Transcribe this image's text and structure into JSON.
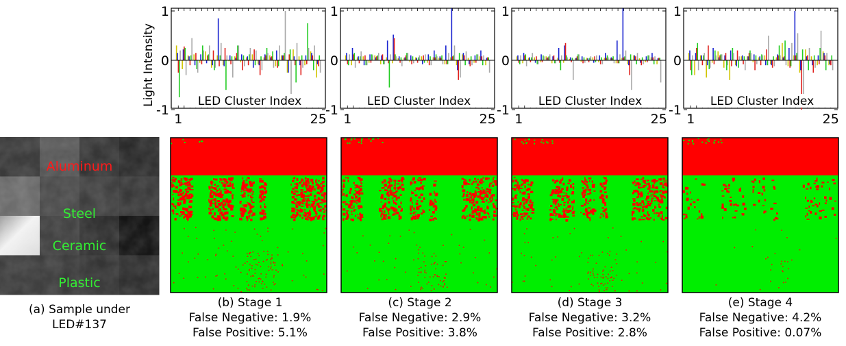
{
  "ylabel": "Light Intensity",
  "chart_data": [
    {
      "type": "bar",
      "panel": "stage-1-spectrum",
      "xlabel": "LED Cluster Index",
      "xticks": [
        "1",
        "25"
      ],
      "yticks": [
        "1",
        "0",
        "-1"
      ],
      "ylim": [
        -1,
        1
      ],
      "series": [
        {
          "color": "#d0c400",
          "values": [
            0.3,
            -0.18,
            0.1,
            0.12,
            -0.05,
            0.18,
            -0.15,
            0.1,
            -0.1,
            -0.02,
            0.08,
            -0.04,
            0.06,
            0.12,
            -0.08,
            0.06,
            0.1,
            -0.12,
            0.1,
            -0.25,
            0.22,
            0.08,
            -0.1,
            0.18,
            -0.35
          ]
        },
        {
          "color": "#1a24d0",
          "values": [
            0.15,
            0.22,
            0.08,
            -0.1,
            0.12,
            -0.06,
            -0.1,
            0.85,
            -0.12,
            0.1,
            0.05,
            0.12,
            0.08,
            -0.15,
            -0.1,
            0.12,
            0.06,
            0.2,
            0.1,
            -0.25,
            0.08,
            -0.1,
            0.1,
            0.15,
            -0.08
          ]
        },
        {
          "color": "#e0201c",
          "values": [
            -0.25,
            0.28,
            -0.1,
            0.15,
            -0.08,
            0.1,
            0.2,
            -0.12,
            0.25,
            -0.08,
            0.15,
            -0.2,
            -0.1,
            0.22,
            -0.3,
            0.1,
            0.08,
            -0.15,
            0.1,
            0.12,
            -0.1,
            -0.3,
            -0.08,
            0.1,
            -0.12
          ]
        },
        {
          "color": "#22cc22",
          "values": [
            -0.75,
            0.25,
            0.1,
            -0.18,
            0.3,
            0.12,
            -0.2,
            0.1,
            -0.6,
            0.08,
            0.3,
            0.1,
            0.12,
            -0.1,
            0.08,
            0.25,
            0.18,
            -0.12,
            0.15,
            0.22,
            -0.45,
            0.1,
            0.75,
            -0.2,
            0.1
          ]
        },
        {
          "color": "#a8a8a8",
          "values": [
            0.2,
            -0.3,
            0.45,
            -0.25,
            0.2,
            0.3,
            -0.15,
            0.35,
            0.1,
            -0.35,
            0.3,
            -0.12,
            0.25,
            0.2,
            -0.2,
            0.15,
            -0.15,
            0.3,
            1.0,
            -0.8,
            0.35,
            -0.15,
            0.25,
            0.3,
            -0.25
          ]
        }
      ]
    },
    {
      "type": "bar",
      "panel": "stage-2-spectrum",
      "xlabel": "LED Cluster Index",
      "xticks": [
        "1",
        "25"
      ],
      "yticks": [
        "1",
        "0",
        "-1"
      ],
      "ylim": [
        -1,
        1
      ],
      "series": [
        {
          "color": "#d0c400",
          "values": [
            0.1,
            -0.1,
            0.06,
            0.08,
            -0.05,
            0.1,
            -0.08,
            0.06,
            -0.06,
            0.04,
            0.05,
            -0.04,
            0.06,
            0.08,
            -0.05,
            0.06,
            0.05,
            -0.08,
            0.06,
            -0.1,
            0.12,
            0.05,
            -0.05,
            0.08,
            -0.1
          ]
        },
        {
          "color": "#1a24d0",
          "values": [
            0.15,
            0.25,
            0.08,
            -0.1,
            0.12,
            0.06,
            0.1,
            0.4,
            0.52,
            0.08,
            0.06,
            0.1,
            0.05,
            -0.08,
            0.12,
            0.2,
            0.08,
            0.3,
            1.2,
            -0.2,
            0.15,
            -0.08,
            0.1,
            0.2,
            0.05
          ]
        },
        {
          "color": "#e0201c",
          "values": [
            -0.08,
            0.12,
            -0.06,
            0.1,
            -0.05,
            0.08,
            0.12,
            -0.06,
            0.45,
            -0.05,
            0.1,
            -0.08,
            -0.05,
            0.1,
            -0.1,
            0.06,
            0.05,
            -0.08,
            0.08,
            -0.4,
            0.1,
            -0.12,
            -0.05,
            0.08,
            0.06
          ]
        },
        {
          "color": "#22cc22",
          "values": [
            -0.1,
            0.15,
            0.08,
            -0.1,
            0.12,
            0.1,
            -0.08,
            -0.55,
            0.12,
            0.06,
            0.15,
            0.08,
            0.06,
            -0.05,
            0.08,
            0.12,
            0.1,
            -0.08,
            0.1,
            0.15,
            -0.1,
            0.08,
            0.12,
            -0.1,
            0.06
          ]
        },
        {
          "color": "#a8a8a8",
          "values": [
            0.12,
            -0.15,
            0.18,
            -0.1,
            0.1,
            0.15,
            -0.08,
            0.12,
            0.08,
            -0.12,
            0.15,
            -0.06,
            0.1,
            0.12,
            -0.1,
            0.08,
            -0.08,
            0.15,
            0.3,
            -0.35,
            0.18,
            -0.1,
            0.12,
            0.1,
            -0.25
          ]
        }
      ]
    },
    {
      "type": "bar",
      "panel": "stage-3-spectrum",
      "xlabel": "LED Cluster Index",
      "xticks": [
        "1",
        "25"
      ],
      "yticks": [
        "1",
        "0",
        "-1"
      ],
      "ylim": [
        -1,
        1
      ],
      "series": [
        {
          "color": "#d0c400",
          "values": [
            0.08,
            -0.06,
            0.05,
            0.06,
            -0.04,
            0.08,
            -0.06,
            0.05,
            -0.05,
            0.03,
            0.04,
            -0.03,
            0.05,
            0.06,
            -0.04,
            0.05,
            0.04,
            -0.06,
            0.05,
            -0.08,
            0.1,
            0.04,
            -0.04,
            0.06,
            -0.08
          ]
        },
        {
          "color": "#1a24d0",
          "values": [
            0.1,
            0.15,
            0.06,
            -0.05,
            0.12,
            0.05,
            0.08,
            0.25,
            0.3,
            0.06,
            0.05,
            0.08,
            0.04,
            -0.05,
            0.1,
            0.15,
            0.06,
            0.4,
            1.2,
            -0.1,
            0.1,
            -0.05,
            0.08,
            0.15,
            0.04
          ]
        },
        {
          "color": "#e0201c",
          "values": [
            -0.05,
            0.1,
            -0.04,
            0.08,
            -0.04,
            0.06,
            0.1,
            -0.05,
            0.35,
            -0.04,
            0.08,
            -0.06,
            -0.04,
            0.08,
            -0.08,
            0.05,
            0.04,
            -0.06,
            0.06,
            -0.3,
            0.08,
            -0.1,
            -0.04,
            0.06,
            0.05
          ]
        },
        {
          "color": "#22cc22",
          "values": [
            -0.08,
            0.12,
            0.06,
            -0.08,
            0.1,
            0.08,
            -0.06,
            -0.2,
            0.1,
            0.05,
            0.12,
            0.06,
            0.05,
            -0.04,
            0.06,
            0.1,
            0.08,
            -0.06,
            0.08,
            0.12,
            -0.08,
            0.06,
            0.1,
            -0.08,
            0.05
          ]
        },
        {
          "color": "#a8a8a8",
          "values": [
            0.1,
            -0.12,
            0.15,
            -0.08,
            0.08,
            0.12,
            -0.06,
            0.1,
            0.06,
            -0.4,
            0.12,
            -0.05,
            0.08,
            0.1,
            -0.08,
            0.06,
            -0.06,
            0.12,
            0.2,
            -0.6,
            0.15,
            -0.08,
            0.1,
            0.08,
            -0.45
          ]
        }
      ]
    },
    {
      "type": "bar",
      "panel": "stage-4-spectrum",
      "xlabel": "LED Cluster Index",
      "xticks": [
        "1",
        "25"
      ],
      "yticks": [
        "1",
        "0",
        "-1"
      ],
      "ylim": [
        -1,
        1
      ],
      "series": [
        {
          "color": "#d0c400",
          "values": [
            0.15,
            -0.3,
            0.1,
            -0.35,
            -0.05,
            0.18,
            -0.15,
            -0.4,
            -0.1,
            0.08,
            0.08,
            -0.04,
            0.06,
            0.1,
            -0.08,
            0.06,
            0.35,
            -0.12,
            0.1,
            -0.25,
            0.22,
            0.08,
            -0.1,
            0.18,
            -0.1
          ]
        },
        {
          "color": "#1a24d0",
          "values": [
            0.2,
            0.15,
            0.1,
            -0.1,
            0.25,
            0.06,
            0.1,
            0.2,
            -0.12,
            0.1,
            0.08,
            0.12,
            0.08,
            -0.1,
            -0.1,
            0.12,
            0.06,
            0.25,
            1.0,
            -0.2,
            0.08,
            -0.1,
            0.1,
            0.15,
            -0.08
          ]
        },
        {
          "color": "#e0201c",
          "values": [
            -0.2,
            0.25,
            -0.1,
            0.3,
            -0.08,
            0.1,
            0.15,
            -0.12,
            0.2,
            -0.08,
            0.15,
            -0.2,
            -0.1,
            0.22,
            -0.15,
            0.1,
            0.08,
            -0.15,
            0.1,
            -1.2,
            0.1,
            -0.25,
            -0.08,
            0.1,
            -0.1
          ]
        },
        {
          "color": "#22cc22",
          "values": [
            -0.3,
            0.35,
            0.1,
            -0.18,
            0.2,
            0.12,
            -0.2,
            0.25,
            -0.15,
            0.08,
            0.2,
            0.1,
            0.12,
            -0.1,
            0.08,
            0.3,
            0.4,
            -0.12,
            0.15,
            0.22,
            -0.2,
            0.1,
            0.25,
            -0.2,
            0.1
          ]
        },
        {
          "color": "#a8a8a8",
          "values": [
            0.1,
            -0.2,
            0.15,
            -0.15,
            0.1,
            0.12,
            -0.1,
            0.15,
            0.08,
            -0.2,
            0.15,
            -0.08,
            0.1,
            0.5,
            -0.12,
            0.1,
            -0.1,
            0.35,
            0.55,
            -0.85,
            0.25,
            -0.15,
            0.6,
            0.15,
            -0.2
          ]
        }
      ]
    },
    {
      "type": "heatmap",
      "panel": "classification-maps",
      "legend": {
        "red": "#ff0000",
        "green": "#00ee00"
      }
    }
  ],
  "sample": {
    "materials": [
      "Aluminum",
      "Steel",
      "Ceramic",
      "Plastic"
    ],
    "material_colors": [
      "#ff1a1a",
      "#33ee33",
      "#33ee33",
      "#33ee33"
    ],
    "caption": [
      "(a) Sample under",
      "LED#137"
    ]
  },
  "stages": [
    {
      "label": "(b) Stage 1",
      "fn": "False Negative: 1.9%",
      "fp": "False Positive: 5.1%"
    },
    {
      "label": "(c) Stage 2",
      "fn": "False Negative: 2.9%",
      "fp": "False Positive: 3.8%"
    },
    {
      "label": "(d) Stage 3",
      "fn": "False Negative: 3.2%",
      "fp": "False Positive: 2.8%"
    },
    {
      "label": "(e) Stage 4",
      "fn": "False Negative: 4.2%",
      "fp": "False Positive: 0.07%"
    }
  ]
}
